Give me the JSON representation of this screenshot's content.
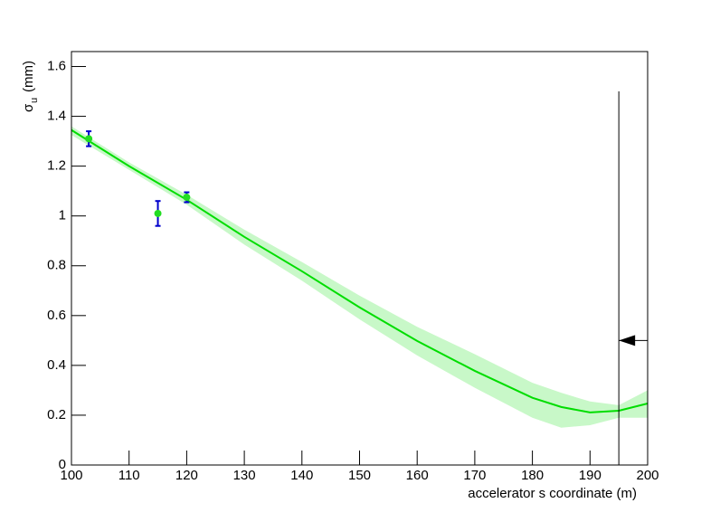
{
  "chart_data": {
    "type": "line",
    "ylabel_symbol": "σ",
    "ylabel_subscript": "u",
    "ylabel_unit": "(mm)",
    "xlabel": "accelerator s coordinate (m)",
    "xlim": [
      100,
      200
    ],
    "xticks": [
      100,
      110,
      120,
      130,
      140,
      150,
      160,
      170,
      180,
      190,
      200
    ],
    "ylim": [
      0,
      1.66
    ],
    "yticks": [
      0,
      0.2,
      0.4,
      0.6,
      0.8,
      1,
      1.2,
      1.4,
      1.6
    ],
    "fit": {
      "color": "#00dd00",
      "band_color": "#c8f8c8",
      "x": [
        100,
        110,
        120,
        130,
        140,
        150,
        160,
        170,
        180,
        185,
        190,
        195,
        200
      ],
      "values": [
        1.345,
        1.2,
        1.065,
        0.916,
        0.778,
        0.633,
        0.498,
        0.378,
        0.27,
        0.233,
        0.211,
        0.218,
        0.247
      ],
      "lower": [
        1.325,
        1.185,
        1.045,
        0.885,
        0.74,
        0.585,
        0.44,
        0.31,
        0.19,
        0.15,
        0.16,
        0.19,
        0.19
      ],
      "upper": [
        1.36,
        1.215,
        1.085,
        0.945,
        0.815,
        0.68,
        0.555,
        0.445,
        0.33,
        0.29,
        0.255,
        0.24,
        0.3
      ]
    },
    "points": {
      "color": "#22dd22",
      "error_color": "#0000cc",
      "x": [
        103,
        115,
        120
      ],
      "values": [
        1.31,
        1.01,
        1.075
      ],
      "errors": [
        0.03,
        0.05,
        0.02
      ]
    },
    "marker_line": {
      "x": 195,
      "y_top": 1.5
    },
    "arrow": {
      "y": 0.5
    }
  }
}
